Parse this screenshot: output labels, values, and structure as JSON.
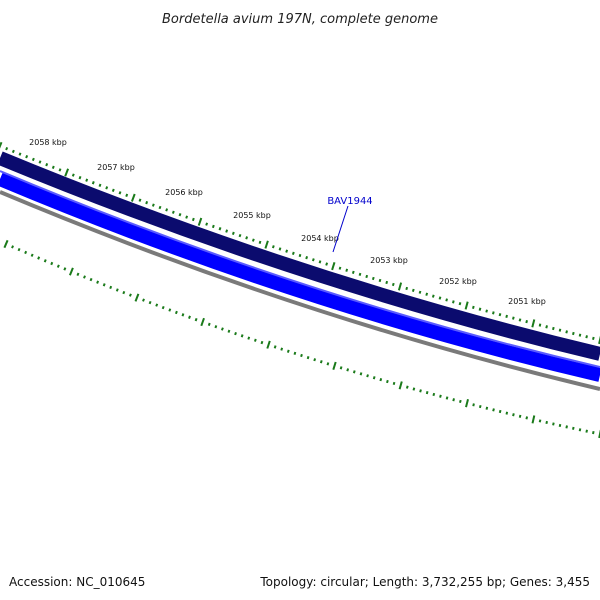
{
  "title": "Bordetella avium 197N, complete genome",
  "footer": {
    "accession": "Accession: NC_010645",
    "summary": "Topology: circular; Length: 3,732,255 bp; Genes: 3,455"
  },
  "tick_labels": [
    "2058 kbp",
    "2057 kbp",
    "2056 kbp",
    "2055 kbp",
    "2054 kbp",
    "2053 kbp",
    "2052 kbp",
    "2051 kbp"
  ],
  "gene_label": "BAV1944",
  "colors": {
    "outer_strand": "#0b0b6e",
    "inner_strand": "#0000ff",
    "backbone": "#7a7a7a",
    "ticks": "#1a7a1a",
    "gene_label": "#0000cc"
  }
}
